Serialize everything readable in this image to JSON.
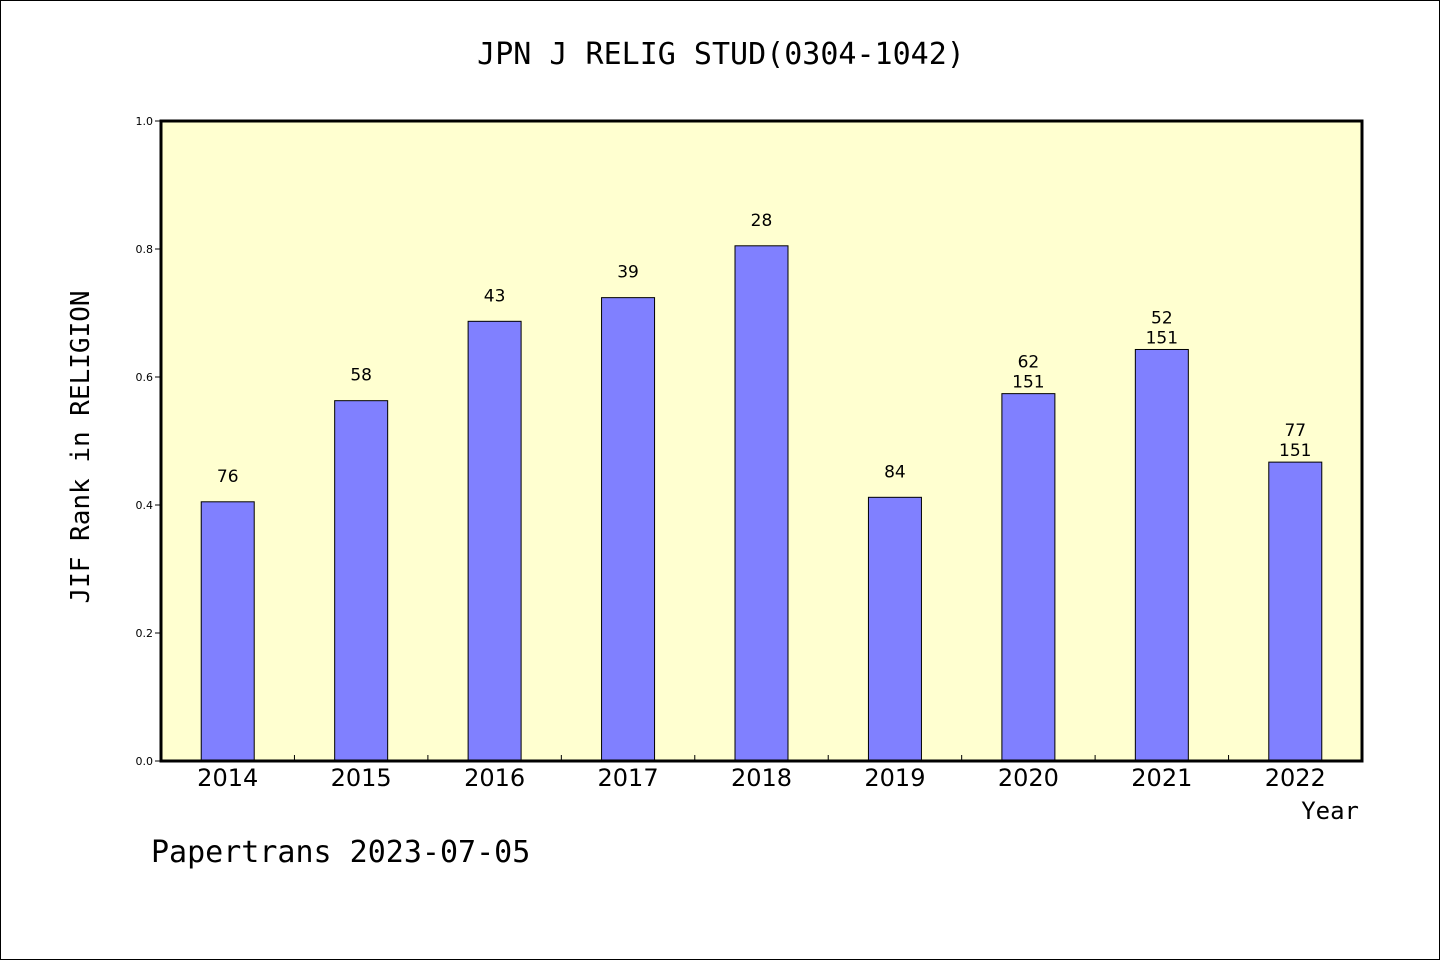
{
  "chart_data": {
    "type": "bar",
    "title": "JPN J RELIG STUD(0304-1042)",
    "xlabel": "Year",
    "ylabel": "JIF Rank in RELIGION",
    "ylim": [
      0,
      1.0
    ],
    "yticks": [
      "0.0",
      "0.2",
      "0.4",
      "0.6",
      "0.8",
      "1.0"
    ],
    "categories": [
      "2014",
      "2015",
      "2016",
      "2017",
      "2018",
      "2019",
      "2020",
      "2021",
      "2022"
    ],
    "values": [
      0.405,
      0.563,
      0.687,
      0.724,
      0.805,
      0.412,
      0.574,
      0.643,
      0.467
    ],
    "ranks": [
      "76",
      "58",
      "43",
      "39",
      "28",
      "84",
      "62",
      "52",
      "77"
    ],
    "totals": [
      "",
      "",
      "",
      "",
      "",
      "",
      "151",
      "151",
      "151"
    ],
    "grid": false,
    "bar_color": "#8080ff",
    "plot_background": "#ffffd0"
  },
  "footer": "Papertrans 2023-07-05"
}
